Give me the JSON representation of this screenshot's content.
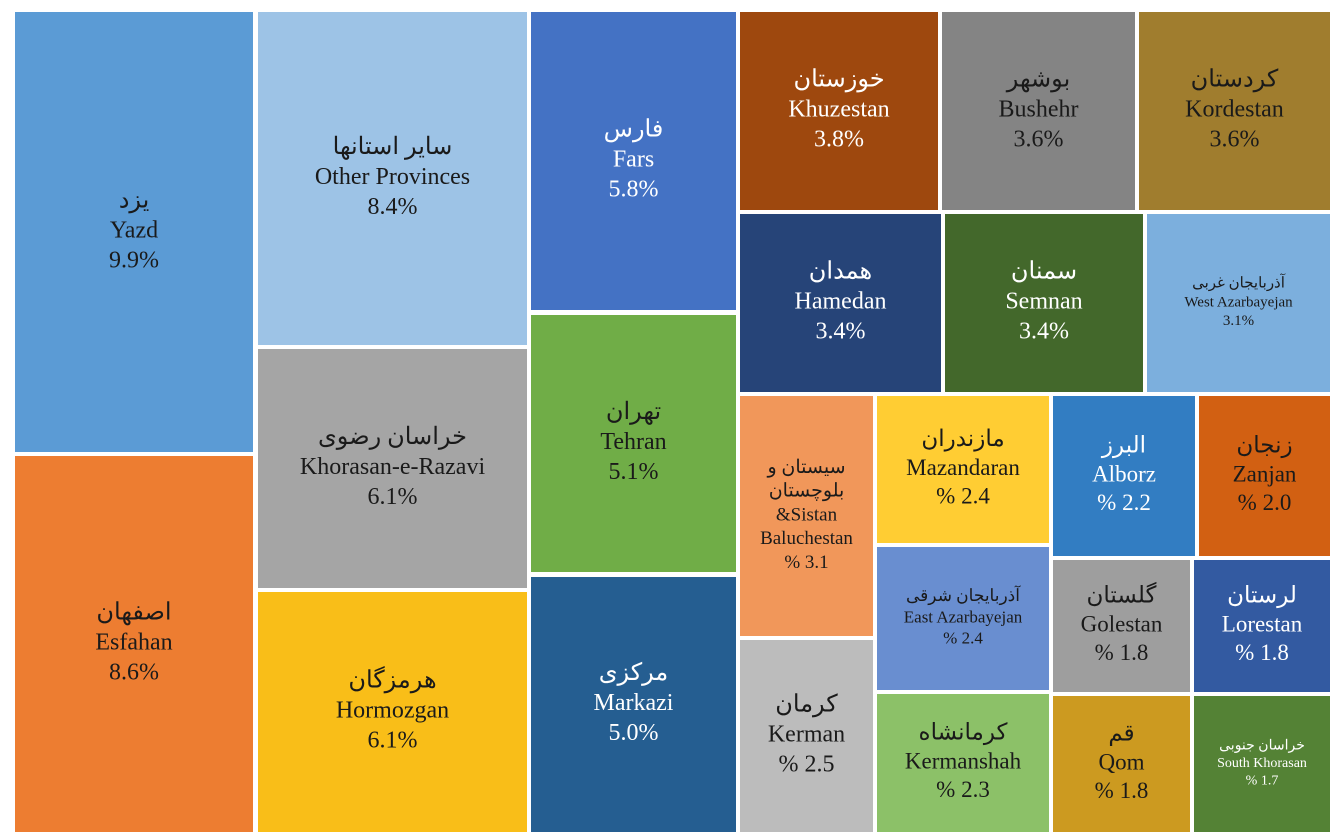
{
  "chart_data": {
    "type": "treemap",
    "categories": [
      "Yazd",
      "Esfahan",
      "Other Provinces",
      "Khorasan-e-Razavi",
      "Hormozgan",
      "Fars",
      "Tehran",
      "Markazi",
      "Khuzestan",
      "Bushehr",
      "Kordestan",
      "Hamedan",
      "Semnan",
      "West Azarbayejan",
      [
        "&Sistan",
        "Baluchestan"
      ],
      "Kerman",
      "Mazandaran",
      "East Azarbayejan",
      "Kermanshah",
      "Alborz",
      "Zanjan",
      "Golestan",
      "Lorestan",
      "Qom",
      "South Khorasan"
    ],
    "names_fa": [
      "یزد",
      "اصفهان",
      "سایر استانها",
      "خراسان رضوی",
      "هرمزگان",
      "فارس",
      "تهران",
      "مرکزی",
      "خوزستان",
      "بوشهر",
      "کردستان",
      "همدان",
      "سمنان",
      "آذربایجان غربی",
      [
        "سیستان و",
        "بلوچستان"
      ],
      "کرمان",
      "مازندران",
      "آذربایجان شرقی",
      "کرمانشاه",
      "البرز",
      "زنجان",
      "گلستان",
      "لرستان",
      "قم",
      "خراسان جنوبی"
    ],
    "values": [
      9.9,
      8.6,
      8.4,
      6.1,
      6.1,
      5.8,
      5.1,
      5.0,
      3.8,
      3.6,
      3.6,
      3.4,
      3.4,
      3.1,
      3.1,
      2.5,
      2.4,
      2.4,
      2.3,
      2.2,
      2.0,
      1.8,
      1.8,
      1.8,
      1.7
    ],
    "value_labels": [
      "9.9%",
      "8.6%",
      "8.4%",
      "6.1%",
      "6.1%",
      "5.8%",
      "5.1%",
      "5.0%",
      "3.8%",
      "3.6%",
      "3.6%",
      "3.4%",
      "3.4%",
      "3.1%",
      "% 3.1",
      "% 2.5",
      "% 2.4",
      "% 2.4",
      "% 2.3",
      "% 2.2",
      "% 2.0",
      "% 1.8",
      "% 1.8",
      "% 1.8",
      "% 1.7"
    ],
    "colors": [
      "#5b9bd5",
      "#ed7d31",
      "#9dc3e6",
      "#a5a5a5",
      "#f9be18",
      "#4472c4",
      "#70ad47",
      "#255e91",
      "#9e480e",
      "#848484",
      "#a07d2e",
      "#264478",
      "#43682b",
      "#7cafdd",
      "#f1975a",
      "#bcbcbc",
      "#ffcd33",
      "#698ed0",
      "#8cc168",
      "#327dc2",
      "#d26012",
      "#9e9e9e",
      "#335aa1",
      "#cc9a20",
      "#548235"
    ]
  }
}
